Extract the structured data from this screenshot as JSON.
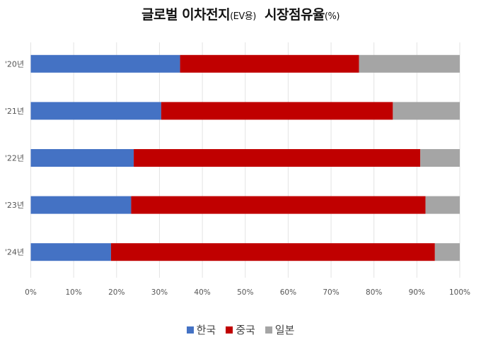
{
  "chart_data": {
    "type": "bar",
    "orientation": "horizontal",
    "stacked": "percent",
    "title_main": "글로벌 이차전지",
    "title_paren": "(EV용)",
    "title_rest": "시장점유율",
    "title_unit": "(%)",
    "categories": [
      "'20년",
      "'21년",
      "'22년",
      "'23년",
      "'24년"
    ],
    "series": [
      {
        "name": "한국",
        "color": "#4472C4",
        "values": [
          34.8,
          30.4,
          24.0,
          23.4,
          18.7
        ]
      },
      {
        "name": "중국",
        "color": "#C00000",
        "values": [
          41.7,
          54.0,
          66.8,
          68.6,
          75.5
        ]
      },
      {
        "name": "일본",
        "color": "#A5A5A5",
        "values": [
          23.5,
          15.6,
          9.2,
          8.0,
          5.8
        ]
      }
    ],
    "xlim": [
      0,
      100
    ],
    "xticks": [
      "0%",
      "10%",
      "20%",
      "30%",
      "40%",
      "50%",
      "60%",
      "70%",
      "80%",
      "90%",
      "100%"
    ],
    "grid": true,
    "legend": "bottom"
  }
}
